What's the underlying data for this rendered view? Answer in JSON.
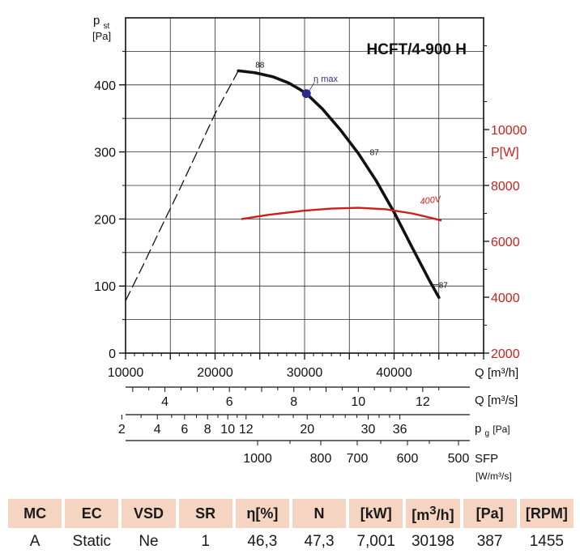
{
  "chart_data": {
    "type": "line",
    "title": "HCFT/4-900 H",
    "xlabel": "Q [m³/h]",
    "xlim": [
      10000,
      50000
    ],
    "x_ticks": [
      "10000",
      "20000",
      "30000",
      "40000"
    ],
    "ylabel_left": {
      "main": "p",
      "sub": "st",
      "unit": "[Pa]"
    },
    "ylim_left": [
      0,
      500
    ],
    "y_ticks_left": [
      "0",
      "100",
      "200",
      "300",
      "400"
    ],
    "ylabel_right": "P[W]",
    "ylim_right": [
      2000,
      14000
    ],
    "y_ticks_right": [
      "2000",
      "4000",
      "6000",
      "8000",
      "10000"
    ],
    "right_axis_color": "#cc1f1a",
    "grid": true,
    "series": [
      {
        "name": "pressure-curve",
        "style": "solid",
        "color": "#111111",
        "x": [
          22600,
          24500,
          26500,
          28200,
          29500,
          30198,
          32000,
          34000,
          36000,
          38000,
          40000,
          42000,
          44000,
          45000
        ],
        "y": [
          421,
          418,
          412,
          403,
          393,
          387,
          364,
          333,
          298,
          257,
          210,
          158,
          107,
          83
        ]
      },
      {
        "name": "stall-region",
        "style": "dashed",
        "color": "#111111",
        "x": [
          10000,
          12000,
          14000,
          16000,
          18000,
          20000,
          22600
        ],
        "y": [
          78,
          132,
          188,
          243,
          300,
          357,
          421
        ]
      },
      {
        "name": "power-curve",
        "style": "solid",
        "color": "#cc1f1a",
        "axis": "right",
        "x": [
          23000,
          26000,
          30000,
          33000,
          36000,
          39000,
          42000,
          44000,
          45200
        ],
        "y": [
          6800,
          6950,
          7100,
          7170,
          7200,
          7150,
          7000,
          6850,
          6750
        ]
      }
    ],
    "annotations": [
      {
        "text": "88",
        "x": 24500,
        "y": 421
      },
      {
        "text": "87",
        "x": 37300,
        "y": 300
      },
      {
        "text": "87",
        "x": 45000,
        "y": 102
      },
      {
        "text": "η max",
        "x": 31000,
        "y": 400
      },
      {
        "text": "400V",
        "x": 43000,
        "y": 7200,
        "axis": "right"
      }
    ],
    "eta_max_point": {
      "x": 30198,
      "y": 387,
      "color": "#2c2c8a"
    },
    "secondary_scales": [
      {
        "name": "q-m3s",
        "label": "Q [m³/s]",
        "ticks": [
          "4",
          "6",
          "8",
          "10",
          "12"
        ],
        "values": [
          4,
          6,
          8,
          10,
          12
        ],
        "unit_factor": 3600
      },
      {
        "name": "pg",
        "label": "p",
        "sub": "g",
        "unit": "[Pa]",
        "ticks": [
          "2",
          "4",
          "6",
          "8",
          "10",
          "12",
          "20",
          "30",
          "36"
        ],
        "values": [
          2,
          4,
          6,
          8,
          10,
          12,
          20,
          30,
          36
        ],
        "minor_values": [
          3,
          5,
          7,
          9,
          11,
          14,
          16,
          18,
          22,
          24,
          26,
          28,
          32,
          34
        ]
      },
      {
        "name": "sfp",
        "label": "SFP",
        "unit": "[W/m³/s]",
        "ticks": [
          "1000",
          "800",
          "700",
          "600",
          "500"
        ],
        "values": [
          1000,
          800,
          700,
          600,
          500
        ],
        "minor_values": [
          900,
          650,
          550
        ]
      }
    ]
  },
  "table": {
    "headers": {
      "mc": "MC",
      "ec": "EC",
      "vsd": "VSD",
      "sr": "SR",
      "eta_symbol": "η",
      "eta_unit": "[%]",
      "n": "N",
      "kw": "[kW]",
      "m3h_pre": "[m",
      "m3h_sup": "3",
      "m3h_post": "/h]",
      "pa": "[Pa]",
      "rpm": "[RPM]"
    },
    "row": {
      "mc": "A",
      "ec": "Static",
      "vsd": "Ne",
      "sr": "1",
      "eta": "46,3",
      "n": "47,3",
      "kw": "7,001",
      "m3h": "30198",
      "pa": "387",
      "rpm": "1455"
    }
  }
}
